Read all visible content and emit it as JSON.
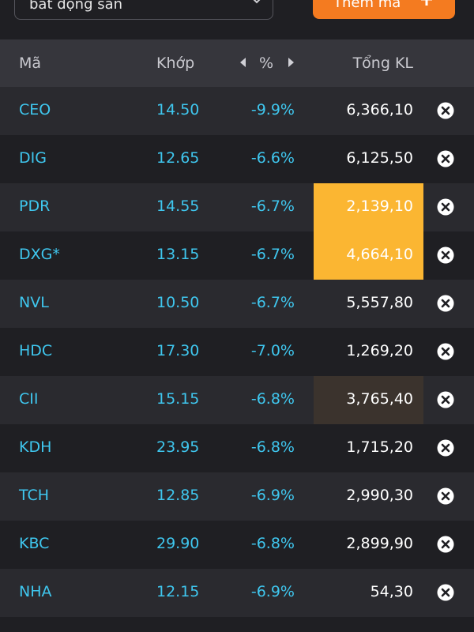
{
  "filter": {
    "group_label": "bất động sản",
    "add_button_label": "Thêm mã"
  },
  "table": {
    "headers": {
      "symbol": "Mã",
      "price": "Khớp",
      "change": "%",
      "volume": "Tổng KL"
    },
    "rows": [
      {
        "symbol": "CEO",
        "price": "14.50",
        "change": "-9.9%",
        "volume": "6,366,10",
        "highlight": ""
      },
      {
        "symbol": "DIG",
        "price": "12.65",
        "change": "-6.6%",
        "volume": "6,125,50",
        "highlight": ""
      },
      {
        "symbol": "PDR",
        "price": "14.55",
        "change": "-6.7%",
        "volume": "2,139,10",
        "highlight": "orange"
      },
      {
        "symbol": "DXG*",
        "price": "13.15",
        "change": "-6.7%",
        "volume": "4,664,10",
        "highlight": "orange"
      },
      {
        "symbol": "NVL",
        "price": "10.50",
        "change": "-6.7%",
        "volume": "5,557,80",
        "highlight": ""
      },
      {
        "symbol": "HDC",
        "price": "17.30",
        "change": "-7.0%",
        "volume": "1,269,20",
        "highlight": ""
      },
      {
        "symbol": "CII",
        "price": "15.15",
        "change": "-6.8%",
        "volume": "3,765,40",
        "highlight": "dark"
      },
      {
        "symbol": "KDH",
        "price": "23.95",
        "change": "-6.8%",
        "volume": "1,715,20",
        "highlight": ""
      },
      {
        "symbol": "TCH",
        "price": "12.85",
        "change": "-6.9%",
        "volume": "2,990,30",
        "highlight": ""
      },
      {
        "symbol": "KBC",
        "price": "29.90",
        "change": "-6.8%",
        "volume": "2,899,90",
        "highlight": ""
      },
      {
        "symbol": "NHA",
        "price": "12.15",
        "change": "-6.9%",
        "volume": "54,30",
        "highlight": ""
      }
    ]
  },
  "colors": {
    "accent_orange": "#f47b20",
    "price_cyan": "#3fc7ef",
    "highlight_orange": "#fbb632",
    "highlight_dark": "#3b332d",
    "header_bg": "#36363c"
  },
  "icons": {
    "dropdown": "chevron-down-icon",
    "add": "plus-icon",
    "column_prev": "caret-left-icon",
    "column_next": "caret-right-icon",
    "remove": "close-circle-icon"
  }
}
